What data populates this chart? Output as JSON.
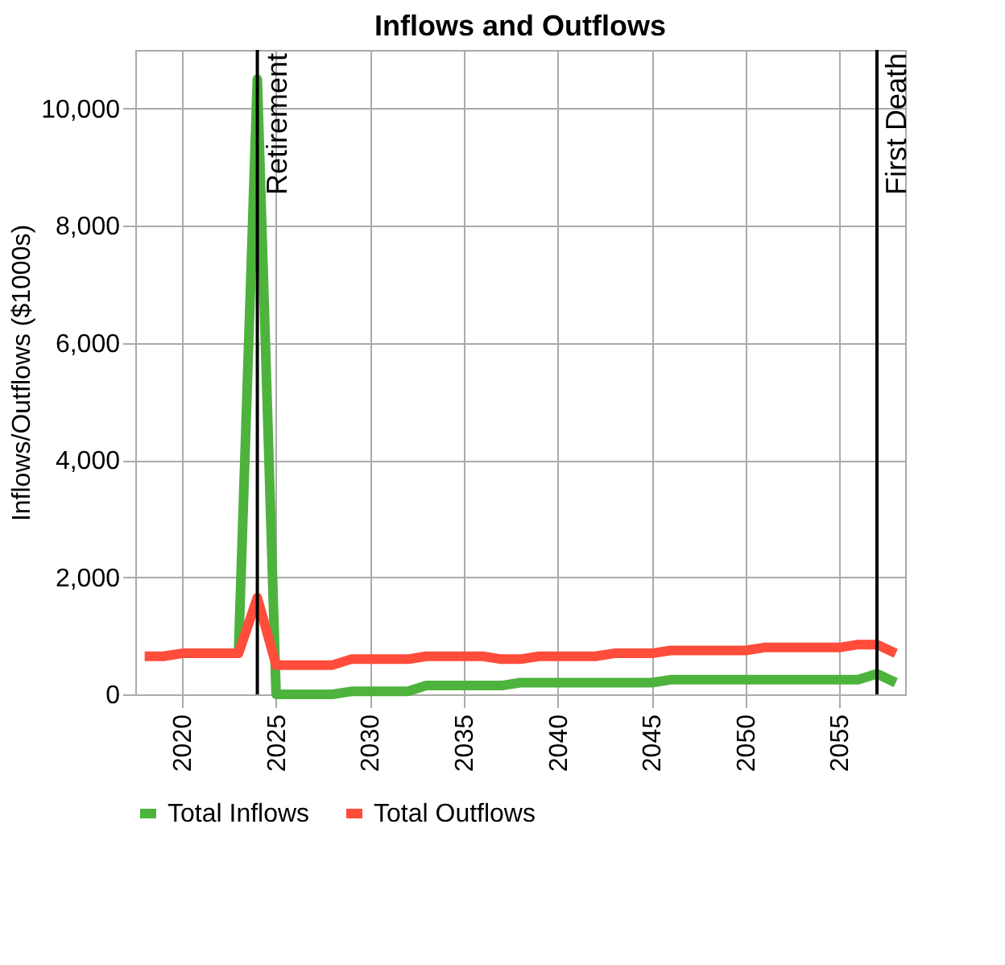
{
  "chart_data": {
    "type": "line",
    "title": "Inflows and Outflows",
    "ylabel": "Inflows/Outflows ($1000s)",
    "x": [
      2018,
      2019,
      2020,
      2021,
      2022,
      2023,
      2024,
      2025,
      2026,
      2027,
      2028,
      2029,
      2030,
      2031,
      2032,
      2033,
      2034,
      2035,
      2036,
      2037,
      2038,
      2039,
      2040,
      2041,
      2042,
      2043,
      2044,
      2045,
      2046,
      2047,
      2048,
      2049,
      2050,
      2051,
      2052,
      2053,
      2054,
      2055,
      2056,
      2057,
      2058
    ],
    "series": [
      {
        "name": "Total Inflows",
        "color": "#4db33d",
        "values": [
          null,
          null,
          null,
          null,
          null,
          750,
          10500,
          0,
          0,
          0,
          0,
          50,
          50,
          50,
          50,
          150,
          150,
          150,
          150,
          150,
          200,
          200,
          200,
          200,
          200,
          200,
          200,
          200,
          250,
          250,
          250,
          250,
          250,
          250,
          250,
          250,
          250,
          250,
          250,
          350,
          200
        ]
      },
      {
        "name": "Total Outflows",
        "color": "#ff4c3b",
        "values": [
          650,
          650,
          700,
          700,
          700,
          700,
          1650,
          500,
          500,
          500,
          500,
          600,
          600,
          600,
          600,
          650,
          650,
          650,
          650,
          600,
          600,
          650,
          650,
          650,
          650,
          700,
          700,
          700,
          750,
          750,
          750,
          750,
          750,
          800,
          800,
          800,
          800,
          800,
          850,
          850,
          700
        ]
      }
    ],
    "xlim": [
      2017.5,
      2058.5
    ],
    "xticks": [
      2020,
      2025,
      2030,
      2035,
      2040,
      2045,
      2050,
      2055
    ],
    "ylim": [
      0,
      11000
    ],
    "yticks": [
      0,
      {
        "value": 2000,
        "label": "2,000"
      },
      {
        "value": 4000,
        "label": "4,000"
      },
      {
        "value": 6000,
        "label": "6,000"
      },
      {
        "value": 8000,
        "label": "8,000"
      },
      {
        "value": 10000,
        "label": "10,000"
      }
    ],
    "ref_lines": [
      {
        "axis": "x",
        "value": 2024,
        "label": "Retirement",
        "color": "#000000"
      },
      {
        "axis": "x",
        "value": 2057,
        "label": "First Death",
        "color": "#000000"
      }
    ],
    "grid": true,
    "legend": "bottom",
    "marker": "none",
    "line_style": "solid"
  }
}
